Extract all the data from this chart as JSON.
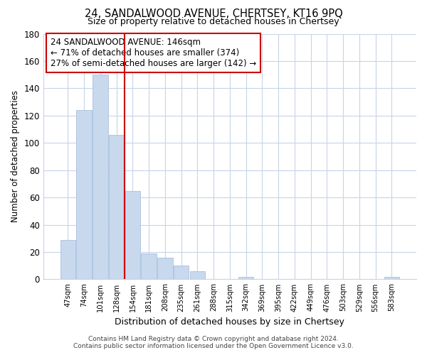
{
  "title": "24, SANDALWOOD AVENUE, CHERTSEY, KT16 9PQ",
  "subtitle": "Size of property relative to detached houses in Chertsey",
  "xlabel": "Distribution of detached houses by size in Chertsey",
  "ylabel": "Number of detached properties",
  "bar_labels": [
    "47sqm",
    "74sqm",
    "101sqm",
    "128sqm",
    "154sqm",
    "181sqm",
    "208sqm",
    "235sqm",
    "261sqm",
    "288sqm",
    "315sqm",
    "342sqm",
    "369sqm",
    "395sqm",
    "422sqm",
    "449sqm",
    "476sqm",
    "503sqm",
    "529sqm",
    "556sqm",
    "583sqm"
  ],
  "bar_values": [
    29,
    124,
    150,
    106,
    65,
    19,
    16,
    10,
    6,
    0,
    0,
    2,
    0,
    0,
    0,
    0,
    0,
    0,
    0,
    0,
    2
  ],
  "bar_color": "#c8d8ed",
  "bar_edge_color": "#a8c0e0",
  "vline_color": "#cc0000",
  "ylim": [
    0,
    180
  ],
  "yticks": [
    0,
    20,
    40,
    60,
    80,
    100,
    120,
    140,
    160,
    180
  ],
  "annotation_title": "24 SANDALWOOD AVENUE: 146sqm",
  "annotation_line1": "← 71% of detached houses are smaller (374)",
  "annotation_line2": "27% of semi-detached houses are larger (142) →",
  "footer1": "Contains HM Land Registry data © Crown copyright and database right 2024.",
  "footer2": "Contains public sector information licensed under the Open Government Licence v3.0.",
  "background_color": "#ffffff",
  "grid_color": "#c8d4e8",
  "vline_index": 3.5
}
